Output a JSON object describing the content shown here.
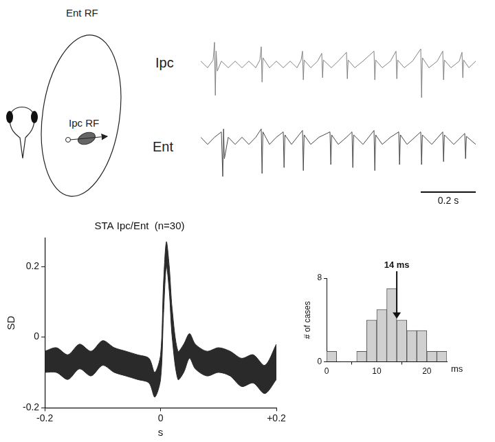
{
  "diagram": {
    "labels": [
      "Ent RF",
      "Ipc RF"
    ]
  },
  "chart_data": [
    {
      "type": "line",
      "title": "Ipc",
      "color": "#808080",
      "xlim": [
        0,
        1
      ],
      "ylim": [
        -1.6,
        1.2
      ],
      "tick_labels": false,
      "points": [
        [
          0,
          0.15
        ],
        [
          0.025,
          -0.15
        ],
        [
          0.045,
          0.2
        ],
        [
          0.05,
          1.0
        ],
        [
          0.053,
          -1.4
        ],
        [
          0.056,
          0.6
        ],
        [
          0.06,
          -0.3
        ],
        [
          0.075,
          0.15
        ],
        [
          0.1,
          -0.15
        ],
        [
          0.125,
          0.15
        ],
        [
          0.15,
          -0.15
        ],
        [
          0.175,
          0.15
        ],
        [
          0.2,
          -0.15
        ],
        [
          0.215,
          0.2
        ],
        [
          0.22,
          0.8
        ],
        [
          0.223,
          -0.8
        ],
        [
          0.226,
          0.3
        ],
        [
          0.25,
          -0.15
        ],
        [
          0.275,
          0.15
        ],
        [
          0.3,
          -0.15
        ],
        [
          0.325,
          0.15
        ],
        [
          0.35,
          -0.15
        ],
        [
          0.365,
          0.2
        ],
        [
          0.37,
          0.6
        ],
        [
          0.373,
          -0.7
        ],
        [
          0.376,
          0.2
        ],
        [
          0.4,
          -0.15
        ],
        [
          0.425,
          0.15
        ],
        [
          0.44,
          0.5
        ],
        [
          0.443,
          -0.6
        ],
        [
          0.446,
          0.2
        ],
        [
          0.475,
          -0.15
        ],
        [
          0.5,
          0.15
        ],
        [
          0.53,
          0.55
        ],
        [
          0.533,
          -0.65
        ],
        [
          0.536,
          0.2
        ],
        [
          0.56,
          -0.15
        ],
        [
          0.59,
          0.15
        ],
        [
          0.63,
          0.6
        ],
        [
          0.633,
          -0.7
        ],
        [
          0.636,
          0.2
        ],
        [
          0.66,
          -0.15
        ],
        [
          0.69,
          0.15
        ],
        [
          0.71,
          0.6
        ],
        [
          0.713,
          -0.65
        ],
        [
          0.716,
          0.2
        ],
        [
          0.74,
          -0.15
        ],
        [
          0.77,
          0.15
        ],
        [
          0.8,
          0.7
        ],
        [
          0.803,
          -1.5
        ],
        [
          0.806,
          0.3
        ],
        [
          0.83,
          -0.15
        ],
        [
          0.86,
          0.15
        ],
        [
          0.88,
          0.6
        ],
        [
          0.883,
          -0.7
        ],
        [
          0.886,
          0.2
        ],
        [
          0.91,
          -0.15
        ],
        [
          0.94,
          0.15
        ],
        [
          0.95,
          0.55
        ],
        [
          0.953,
          -0.6
        ],
        [
          0.956,
          0.2
        ],
        [
          0.975,
          -0.15
        ],
        [
          1.0,
          0.15
        ]
      ]
    },
    {
      "type": "line",
      "title": "Ent",
      "color": "#454545",
      "xlim": [
        0,
        1
      ],
      "ylim": [
        -1.4,
        0.8
      ],
      "tick_labels": false,
      "scale_bar": {
        "value": 0.2,
        "label": "0.2 s"
      },
      "points": [
        [
          0,
          0.12
        ],
        [
          0.025,
          -0.12
        ],
        [
          0.05,
          0.12
        ],
        [
          0.075,
          0.3
        ],
        [
          0.08,
          -1.2
        ],
        [
          0.083,
          0.4
        ],
        [
          0.086,
          -0.6
        ],
        [
          0.1,
          0.12
        ],
        [
          0.125,
          -0.12
        ],
        [
          0.15,
          0.12
        ],
        [
          0.175,
          -0.12
        ],
        [
          0.2,
          0.12
        ],
        [
          0.22,
          0.4
        ],
        [
          0.223,
          -1.1
        ],
        [
          0.226,
          0.3
        ],
        [
          0.25,
          -0.12
        ],
        [
          0.275,
          0.12
        ],
        [
          0.3,
          0.3
        ],
        [
          0.303,
          -0.9
        ],
        [
          0.306,
          0.2
        ],
        [
          0.33,
          -0.12
        ],
        [
          0.37,
          0.35
        ],
        [
          0.373,
          -1.0
        ],
        [
          0.376,
          0.2
        ],
        [
          0.4,
          -0.12
        ],
        [
          0.43,
          0.12
        ],
        [
          0.47,
          0.3
        ],
        [
          0.473,
          -0.8
        ],
        [
          0.476,
          0.2
        ],
        [
          0.5,
          -0.12
        ],
        [
          0.53,
          0.12
        ],
        [
          0.55,
          0.3
        ],
        [
          0.553,
          -0.9
        ],
        [
          0.556,
          0.2
        ],
        [
          0.59,
          -0.12
        ],
        [
          0.63,
          0.35
        ],
        [
          0.633,
          -1.0
        ],
        [
          0.636,
          0.2
        ],
        [
          0.66,
          -0.12
        ],
        [
          0.69,
          0.12
        ],
        [
          0.72,
          0.3
        ],
        [
          0.723,
          -0.8
        ],
        [
          0.726,
          0.2
        ],
        [
          0.75,
          -0.12
        ],
        [
          0.8,
          0.3
        ],
        [
          0.803,
          -0.8
        ],
        [
          0.806,
          0.2
        ],
        [
          0.84,
          -0.12
        ],
        [
          0.88,
          0.3
        ],
        [
          0.883,
          -0.7
        ],
        [
          0.886,
          0.2
        ],
        [
          0.92,
          -0.12
        ],
        [
          0.96,
          0.25
        ],
        [
          0.963,
          -0.6
        ],
        [
          0.966,
          0.15
        ],
        [
          1.0,
          -0.12
        ]
      ]
    },
    {
      "type": "band",
      "title": "STA Ipc/Ent  (n=30)",
      "xlabel": "s",
      "ylabel": "SD",
      "color": "#2a2a2a",
      "grid": false,
      "xlim": [
        -0.2,
        0.2
      ],
      "xticks": [
        -0.2,
        0,
        {
          "value": 0.2,
          "label": "+0.2"
        }
      ],
      "ylim": [
        -0.2,
        0.28
      ],
      "yticks": [
        -0.2,
        0,
        0.2
      ],
      "x": [
        -0.2,
        -0.18,
        -0.16,
        -0.14,
        -0.12,
        -0.1,
        -0.08,
        -0.06,
        -0.04,
        -0.02,
        -0.01,
        0,
        0.005,
        0.01,
        0.015,
        0.02,
        0.03,
        0.04,
        0.05,
        0.06,
        0.08,
        0.1,
        0.12,
        0.14,
        0.16,
        0.18,
        0.2
      ],
      "upper": [
        -0.04,
        -0.03,
        -0.05,
        -0.02,
        -0.04,
        -0.01,
        -0.03,
        -0.04,
        -0.05,
        -0.06,
        -0.1,
        -0.05,
        0.15,
        0.27,
        0.2,
        0.08,
        -0.04,
        -0.02,
        0.01,
        -0.02,
        -0.04,
        -0.03,
        -0.04,
        -0.06,
        -0.05,
        -0.08,
        -0.02
      ],
      "lower": [
        -0.1,
        -0.1,
        -0.12,
        -0.09,
        -0.11,
        -0.08,
        -0.1,
        -0.11,
        -0.12,
        -0.13,
        -0.17,
        -0.12,
        0.06,
        0.2,
        0.13,
        0.0,
        -0.12,
        -0.1,
        -0.06,
        -0.09,
        -0.11,
        -0.1,
        -0.11,
        -0.14,
        -0.13,
        -0.16,
        -0.12
      ]
    },
    {
      "type": "histogram",
      "xlabel": "ms",
      "ylabel": "# of cases",
      "color": "#d0d0d0",
      "grid": false,
      "bins": [
        0,
        2,
        4,
        6,
        8,
        10,
        12,
        14,
        16,
        18,
        20,
        22,
        24
      ],
      "counts": [
        1,
        0,
        0,
        1,
        4,
        5,
        7,
        4,
        3,
        3,
        1,
        1
      ],
      "xlim": [
        0,
        24
      ],
      "xticks": [
        0,
        10,
        20
      ],
      "ylim": [
        0,
        8
      ],
      "yticks": [
        0,
        8
      ],
      "annotation": {
        "text": "14 ms",
        "x": 14
      }
    }
  ]
}
